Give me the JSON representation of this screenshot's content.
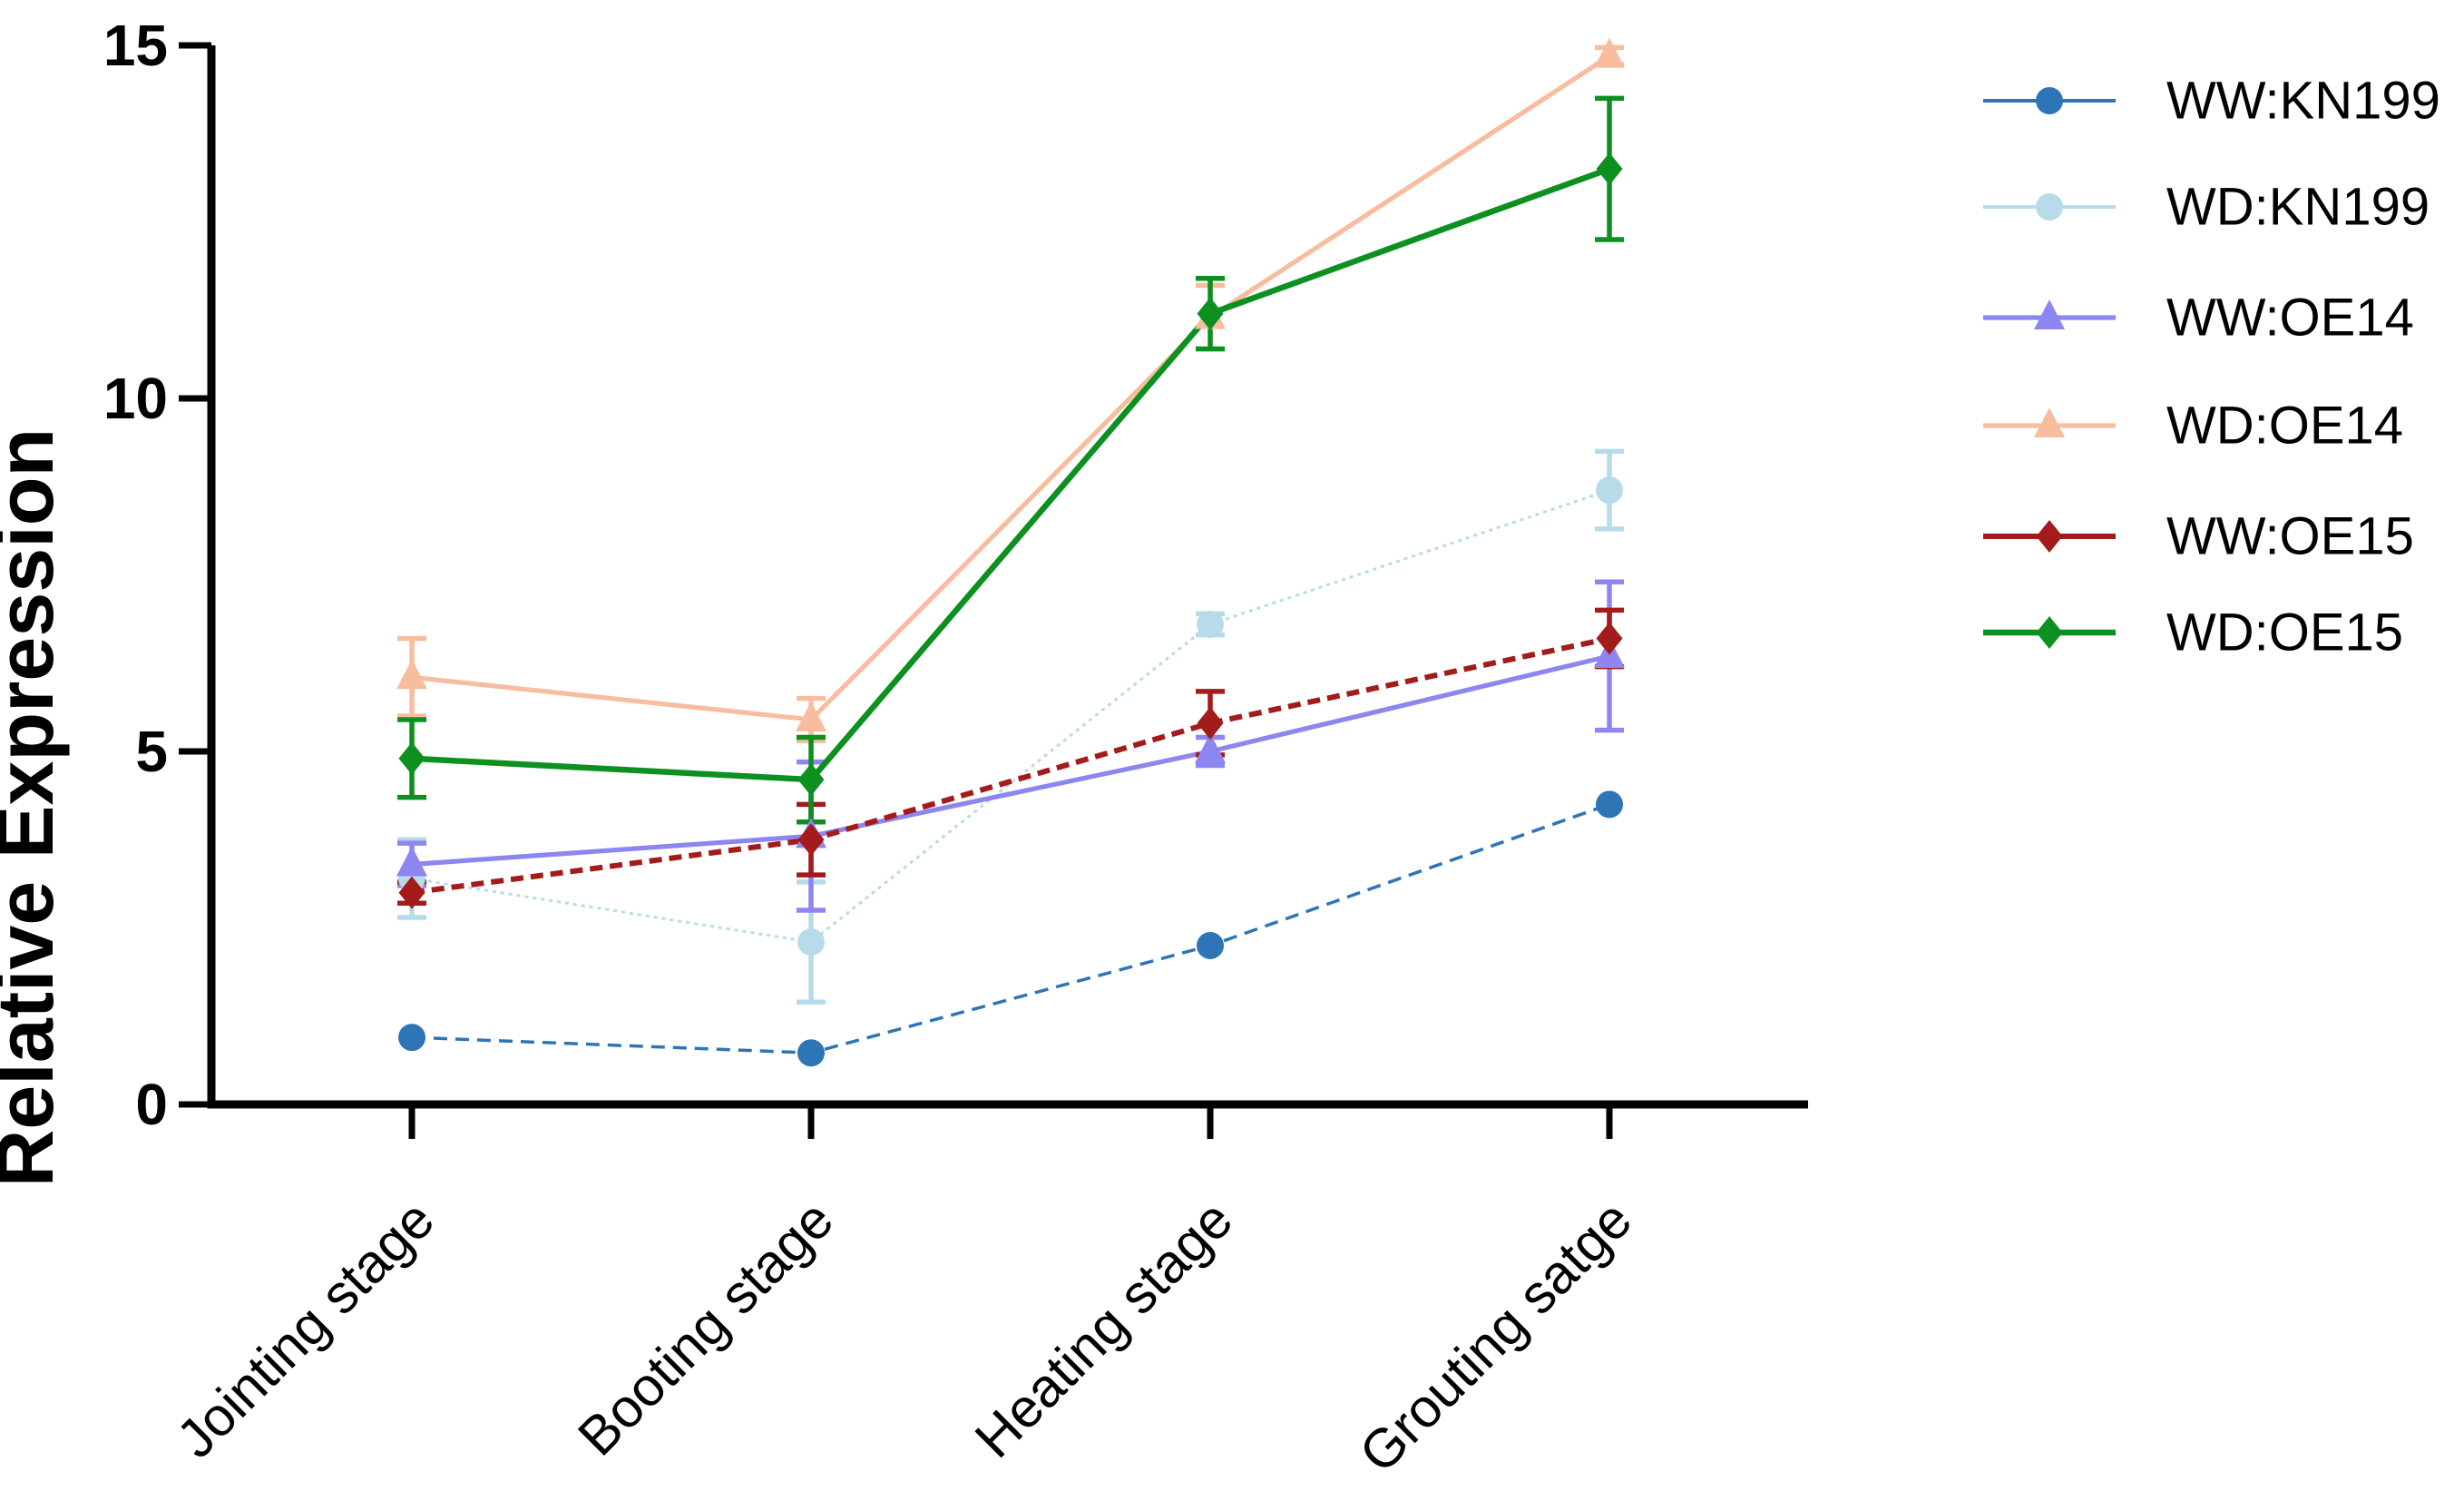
{
  "figure": {
    "background_color": "#ffffff",
    "text_color": "#000000",
    "axis_color": "#000000"
  },
  "chart_data": {
    "type": "line",
    "title": "",
    "xlabel": "",
    "ylabel": "Relative Expression",
    "categories": [
      "Jointing stage",
      "Booting stage",
      "Heating stage",
      "Grouting satge"
    ],
    "y_ticks": [
      "0",
      "5",
      "10",
      "15"
    ],
    "y_tick_values": [
      0,
      5,
      10,
      15
    ],
    "ylim": [
      0,
      15
    ],
    "grid": false,
    "legend_position": "right",
    "error_bars": true,
    "series": [
      {
        "name": "WW:KN199",
        "color": "#2e75b6",
        "marker": "circle",
        "line_style": "dashed",
        "values": [
          0.95,
          0.73,
          2.25,
          4.25
        ],
        "errors": [
          0,
          0,
          0,
          0
        ]
      },
      {
        "name": "WD:KN199",
        "color": "#b8dbe9",
        "marker": "circle",
        "line_style": "dotted",
        "values": [
          3.2,
          2.3,
          6.8,
          8.7
        ],
        "errors": [
          0.55,
          0.85,
          0.15,
          0.55
        ]
      },
      {
        "name": "WW:OE14",
        "color": "#8d86f0",
        "marker": "triangle",
        "line_style": "solid",
        "values": [
          3.4,
          3.8,
          5.0,
          6.35
        ],
        "errors": [
          0.3,
          1.05,
          0.2,
          1.05
        ]
      },
      {
        "name": "WD:OE14",
        "color": "#f7bd9e",
        "marker": "triangle",
        "line_style": "solid",
        "values": [
          6.05,
          5.45,
          11.15,
          14.85
        ],
        "errors": [
          0.55,
          0.3,
          0.45,
          0.12
        ]
      },
      {
        "name": "WW:OE15",
        "color": "#a31b1b",
        "marker": "diamond",
        "line_style": "dashed",
        "values": [
          3.0,
          3.75,
          5.4,
          6.6
        ],
        "errors": [
          0.15,
          0.5,
          0.45,
          0.4
        ]
      },
      {
        "name": "WD:OE15",
        "color": "#0c9020",
        "marker": "diamond",
        "line_style": "solid",
        "values": [
          4.9,
          4.6,
          11.2,
          13.25
        ],
        "errors": [
          0.55,
          0.6,
          0.5,
          1.0
        ]
      }
    ]
  }
}
